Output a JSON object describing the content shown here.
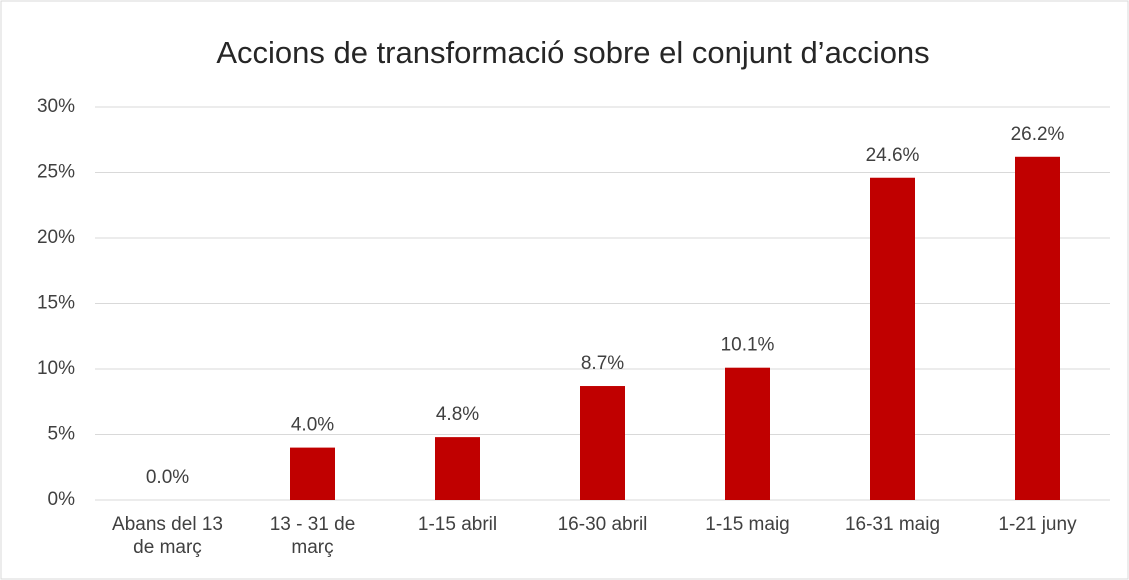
{
  "chart_data": {
    "type": "bar",
    "title": "Accions de transformació sobre el conjunt d’accions",
    "categories": [
      "Abans del 13 de març",
      "13 - 31 de març",
      "1-15 abril",
      "16-30 abril",
      "1-15 maig",
      "16-31 maig",
      "1-21 juny"
    ],
    "values": [
      0.0,
      4.0,
      4.8,
      8.7,
      10.1,
      24.6,
      26.2
    ],
    "value_labels": [
      "0.0%",
      "4.0%",
      "4.8%",
      "8.7%",
      "10.1%",
      "24.6%",
      "26.2%"
    ],
    "color": "#c00000",
    "ylim": [
      0,
      30
    ],
    "yticks": [
      {
        "value": 0,
        "label": "0%"
      },
      {
        "value": 5,
        "label": "5%"
      },
      {
        "value": 10,
        "label": "10%"
      },
      {
        "value": 15,
        "label": "15%"
      },
      {
        "value": 20,
        "label": "20%"
      },
      {
        "value": 25,
        "label": "25%"
      },
      {
        "value": 30,
        "label": "30%"
      }
    ],
    "grid": true
  }
}
